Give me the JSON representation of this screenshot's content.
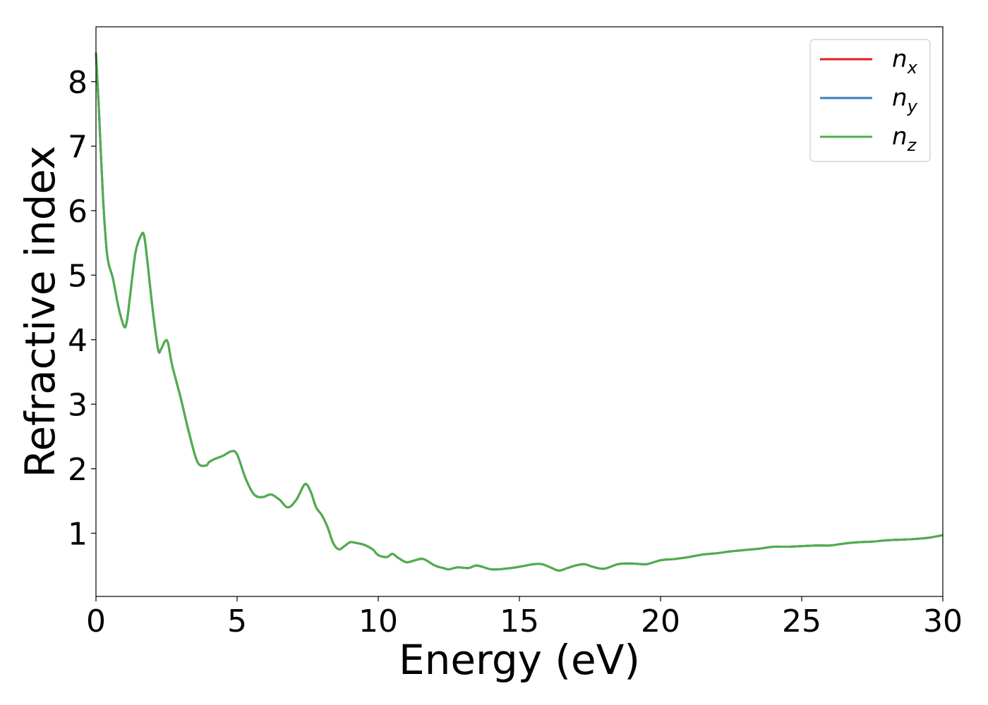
{
  "chart_data": {
    "type": "line",
    "xlabel": "Energy (eV)",
    "ylabel": "Refractive index",
    "xlim": [
      0,
      30
    ],
    "ylim": [
      0.02,
      8.85
    ],
    "xticks": [
      0,
      5,
      10,
      15,
      20,
      25,
      30
    ],
    "yticks": [
      1,
      2,
      3,
      4,
      5,
      6,
      7,
      8
    ],
    "grid": false,
    "legend_position": "top-right",
    "series": [
      {
        "name": "n_x",
        "label_main": "n",
        "label_sub": "x",
        "color": "#e41a1c",
        "x": [
          0,
          0.1,
          0.25,
          0.4,
          0.6,
          0.8,
          1.0,
          1.1,
          1.2,
          1.4,
          1.6,
          1.7,
          1.8,
          2.0,
          2.2,
          2.3,
          2.45,
          2.55,
          2.7,
          3.0,
          3.3,
          3.6,
          3.9,
          4.0,
          4.2,
          4.5,
          4.8,
          5.0,
          5.3,
          5.6,
          5.9,
          6.2,
          6.5,
          6.8,
          7.1,
          7.4,
          7.6,
          7.8,
          8.0,
          8.2,
          8.4,
          8.6,
          8.8,
          9.0,
          9.2,
          9.5,
          9.8,
          10.0,
          10.3,
          10.5,
          10.7,
          11.0,
          11.3,
          11.6,
          12.0,
          12.3,
          12.5,
          12.8,
          13.2,
          13.5,
          14.0,
          14.5,
          15.0,
          15.5,
          15.8,
          16.1,
          16.4,
          16.7,
          17.0,
          17.3,
          17.6,
          18.0,
          18.5,
          19.0,
          19.5,
          20.0,
          20.5,
          21.0,
          21.5,
          22.0,
          22.5,
          23.0,
          23.5,
          24.0,
          24.5,
          25.0,
          25.5,
          26.0,
          26.5,
          27.0,
          27.5,
          28.0,
          28.5,
          29.0,
          29.5,
          30.0
        ],
        "y": [
          8.45,
          7.6,
          6.2,
          5.3,
          4.95,
          4.5,
          4.2,
          4.3,
          4.65,
          5.35,
          5.62,
          5.62,
          5.3,
          4.5,
          3.85,
          3.85,
          3.98,
          3.95,
          3.6,
          3.1,
          2.55,
          2.1,
          2.05,
          2.1,
          2.15,
          2.2,
          2.27,
          2.22,
          1.85,
          1.6,
          1.56,
          1.6,
          1.52,
          1.4,
          1.52,
          1.76,
          1.65,
          1.4,
          1.28,
          1.1,
          0.85,
          0.75,
          0.8,
          0.86,
          0.85,
          0.82,
          0.75,
          0.66,
          0.63,
          0.68,
          0.62,
          0.55,
          0.58,
          0.6,
          0.5,
          0.46,
          0.44,
          0.47,
          0.46,
          0.5,
          0.44,
          0.45,
          0.48,
          0.52,
          0.52,
          0.47,
          0.42,
          0.46,
          0.5,
          0.52,
          0.48,
          0.45,
          0.52,
          0.53,
          0.52,
          0.58,
          0.6,
          0.63,
          0.67,
          0.69,
          0.72,
          0.74,
          0.76,
          0.79,
          0.79,
          0.8,
          0.81,
          0.81,
          0.84,
          0.86,
          0.87,
          0.89,
          0.9,
          0.91,
          0.93,
          0.97
        ]
      },
      {
        "name": "n_y",
        "label_main": "n",
        "label_sub": "y",
        "color": "#377eb8",
        "x": [
          0,
          0.1,
          0.25,
          0.4,
          0.6,
          0.8,
          1.0,
          1.1,
          1.2,
          1.4,
          1.6,
          1.7,
          1.8,
          2.0,
          2.2,
          2.3,
          2.45,
          2.55,
          2.7,
          3.0,
          3.3,
          3.6,
          3.9,
          4.0,
          4.2,
          4.5,
          4.8,
          5.0,
          5.3,
          5.6,
          5.9,
          6.2,
          6.5,
          6.8,
          7.1,
          7.4,
          7.6,
          7.8,
          8.0,
          8.2,
          8.4,
          8.6,
          8.8,
          9.0,
          9.2,
          9.5,
          9.8,
          10.0,
          10.3,
          10.5,
          10.7,
          11.0,
          11.3,
          11.6,
          12.0,
          12.3,
          12.5,
          12.8,
          13.2,
          13.5,
          14.0,
          14.5,
          15.0,
          15.5,
          15.8,
          16.1,
          16.4,
          16.7,
          17.0,
          17.3,
          17.6,
          18.0,
          18.5,
          19.0,
          19.5,
          20.0,
          20.5,
          21.0,
          21.5,
          22.0,
          22.5,
          23.0,
          23.5,
          24.0,
          24.5,
          25.0,
          25.5,
          26.0,
          26.5,
          27.0,
          27.5,
          28.0,
          28.5,
          29.0,
          29.5,
          30.0
        ],
        "y": [
          8.45,
          7.6,
          6.2,
          5.3,
          4.95,
          4.5,
          4.2,
          4.3,
          4.65,
          5.35,
          5.62,
          5.62,
          5.3,
          4.5,
          3.85,
          3.85,
          3.98,
          3.95,
          3.6,
          3.1,
          2.55,
          2.1,
          2.05,
          2.1,
          2.15,
          2.2,
          2.27,
          2.22,
          1.85,
          1.6,
          1.56,
          1.6,
          1.52,
          1.4,
          1.52,
          1.76,
          1.65,
          1.4,
          1.28,
          1.1,
          0.85,
          0.75,
          0.8,
          0.86,
          0.85,
          0.82,
          0.75,
          0.66,
          0.63,
          0.68,
          0.62,
          0.55,
          0.58,
          0.6,
          0.5,
          0.46,
          0.44,
          0.47,
          0.46,
          0.5,
          0.44,
          0.45,
          0.48,
          0.52,
          0.52,
          0.47,
          0.42,
          0.46,
          0.5,
          0.52,
          0.48,
          0.45,
          0.52,
          0.53,
          0.52,
          0.58,
          0.6,
          0.63,
          0.67,
          0.69,
          0.72,
          0.74,
          0.76,
          0.79,
          0.79,
          0.8,
          0.81,
          0.81,
          0.84,
          0.86,
          0.87,
          0.89,
          0.9,
          0.91,
          0.93,
          0.97
        ]
      },
      {
        "name": "n_z",
        "label_main": "n",
        "label_sub": "z",
        "color": "#4daf4a",
        "x": [
          0,
          0.1,
          0.25,
          0.4,
          0.6,
          0.8,
          1.0,
          1.1,
          1.2,
          1.4,
          1.6,
          1.7,
          1.8,
          2.0,
          2.2,
          2.3,
          2.45,
          2.55,
          2.7,
          3.0,
          3.3,
          3.6,
          3.9,
          4.0,
          4.2,
          4.5,
          4.8,
          5.0,
          5.3,
          5.6,
          5.9,
          6.2,
          6.5,
          6.8,
          7.1,
          7.4,
          7.6,
          7.8,
          8.0,
          8.2,
          8.4,
          8.6,
          8.8,
          9.0,
          9.2,
          9.5,
          9.8,
          10.0,
          10.3,
          10.5,
          10.7,
          11.0,
          11.3,
          11.6,
          12.0,
          12.3,
          12.5,
          12.8,
          13.2,
          13.5,
          14.0,
          14.5,
          15.0,
          15.5,
          15.8,
          16.1,
          16.4,
          16.7,
          17.0,
          17.3,
          17.6,
          18.0,
          18.5,
          19.0,
          19.5,
          20.0,
          20.5,
          21.0,
          21.5,
          22.0,
          22.5,
          23.0,
          23.5,
          24.0,
          24.5,
          25.0,
          25.5,
          26.0,
          26.5,
          27.0,
          27.5,
          28.0,
          28.5,
          29.0,
          29.5,
          30.0
        ],
        "y": [
          8.45,
          7.6,
          6.2,
          5.3,
          4.95,
          4.5,
          4.2,
          4.3,
          4.65,
          5.35,
          5.62,
          5.62,
          5.3,
          4.5,
          3.85,
          3.85,
          3.98,
          3.95,
          3.6,
          3.1,
          2.55,
          2.1,
          2.05,
          2.1,
          2.15,
          2.2,
          2.27,
          2.22,
          1.85,
          1.6,
          1.56,
          1.6,
          1.52,
          1.4,
          1.52,
          1.76,
          1.65,
          1.4,
          1.28,
          1.1,
          0.85,
          0.75,
          0.8,
          0.86,
          0.85,
          0.82,
          0.75,
          0.66,
          0.63,
          0.68,
          0.62,
          0.55,
          0.58,
          0.6,
          0.5,
          0.46,
          0.44,
          0.47,
          0.46,
          0.5,
          0.44,
          0.45,
          0.48,
          0.52,
          0.52,
          0.47,
          0.42,
          0.46,
          0.5,
          0.52,
          0.48,
          0.45,
          0.52,
          0.53,
          0.52,
          0.58,
          0.6,
          0.63,
          0.67,
          0.69,
          0.72,
          0.74,
          0.76,
          0.79,
          0.79,
          0.8,
          0.81,
          0.81,
          0.84,
          0.86,
          0.87,
          0.89,
          0.9,
          0.91,
          0.93,
          0.97
        ]
      }
    ]
  }
}
